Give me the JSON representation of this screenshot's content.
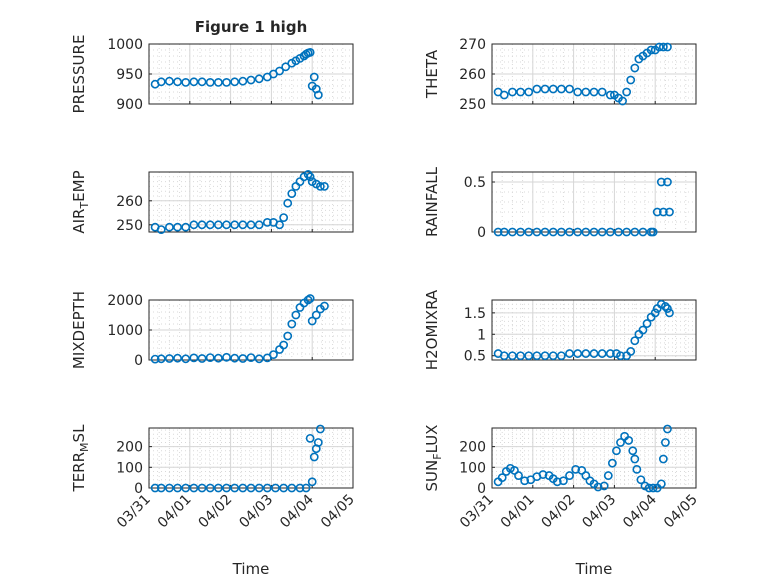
{
  "figure": {
    "title": "Figure 1 high",
    "xlabel": "Time",
    "xticks": [
      "03/31",
      "04/01",
      "04/02",
      "04/03",
      "04/04",
      "04/05"
    ]
  },
  "chart_data": [
    {
      "type": "scatter",
      "position": "row1-left",
      "ylabel": "PRESSURE",
      "xlim": [
        "03/31",
        "04/05"
      ],
      "ylim": [
        900,
        1000
      ],
      "yticks": [
        900,
        950,
        1000
      ],
      "grid": true,
      "marker_color": "#0072bd",
      "series": [
        {
          "x": [
            0.15,
            0.3,
            0.5,
            0.7,
            0.9,
            1.1,
            1.3,
            1.5,
            1.7,
            1.9,
            2.1,
            2.3,
            2.5,
            2.7,
            2.9,
            3.05,
            3.2,
            3.35,
            3.5,
            3.6,
            3.7,
            3.8,
            3.85,
            3.9,
            3.95,
            4.0,
            4.05,
            4.1,
            4.15
          ],
          "y": [
            933,
            937,
            938,
            937,
            936,
            937,
            937,
            936,
            936,
            936,
            937,
            938,
            940,
            942,
            945,
            950,
            955,
            962,
            968,
            972,
            976,
            980,
            983,
            985,
            986,
            930,
            945,
            925,
            915
          ]
        }
      ]
    },
    {
      "type": "scatter",
      "position": "row1-right",
      "ylabel": "THETA",
      "xlim": [
        "03/31",
        "04/05"
      ],
      "ylim": [
        250,
        270
      ],
      "yticks": [
        250,
        260,
        270
      ],
      "grid": true,
      "marker_color": "#0072bd",
      "series": [
        {
          "x": [
            0.15,
            0.3,
            0.5,
            0.7,
            0.9,
            1.1,
            1.3,
            1.5,
            1.7,
            1.9,
            2.1,
            2.3,
            2.5,
            2.7,
            2.9,
            3.0,
            3.1,
            3.2,
            3.3,
            3.4,
            3.5,
            3.6,
            3.7,
            3.8,
            3.9,
            4.0,
            4.1,
            4.2,
            4.3
          ],
          "y": [
            254,
            253,
            254,
            254,
            254,
            255,
            255,
            255,
            255,
            255,
            254,
            254,
            254,
            254,
            253,
            253,
            252,
            251,
            254,
            258,
            262,
            265,
            266,
            267,
            268,
            268,
            269,
            269,
            269
          ]
        }
      ]
    },
    {
      "type": "scatter",
      "position": "row2-left",
      "ylabel": "AIR_TEMP",
      "xlim": [
        "03/31",
        "04/05"
      ],
      "ylim": [
        247,
        272
      ],
      "yticks": [
        250,
        260
      ],
      "grid": true,
      "marker_color": "#0072bd",
      "series": [
        {
          "x": [
            0.15,
            0.3,
            0.5,
            0.7,
            0.9,
            1.1,
            1.3,
            1.5,
            1.7,
            1.9,
            2.1,
            2.3,
            2.5,
            2.7,
            2.9,
            3.05,
            3.2,
            3.3,
            3.4,
            3.5,
            3.6,
            3.7,
            3.8,
            3.9,
            3.95,
            4.0,
            4.1,
            4.2,
            4.3
          ],
          "y": [
            249,
            248,
            249,
            249,
            249,
            250,
            250,
            250,
            250,
            250,
            250,
            250,
            250,
            250,
            251,
            251,
            250,
            253,
            259,
            263,
            266,
            268,
            270,
            271,
            270,
            268,
            267,
            266,
            266
          ]
        }
      ]
    },
    {
      "type": "scatter",
      "position": "row2-right",
      "ylabel": "RAINFALL",
      "xlim": [
        "03/31",
        "04/05"
      ],
      "ylim": [
        0,
        0.6
      ],
      "yticks": [
        0,
        0.5
      ],
      "grid": true,
      "marker_color": "#0072bd",
      "series": [
        {
          "x": [
            0.15,
            0.3,
            0.5,
            0.7,
            0.9,
            1.1,
            1.3,
            1.5,
            1.7,
            1.9,
            2.1,
            2.3,
            2.5,
            2.7,
            2.9,
            3.1,
            3.3,
            3.5,
            3.7,
            3.9,
            3.95,
            4.05,
            4.15,
            4.2,
            4.3,
            4.35
          ],
          "y": [
            0,
            0,
            0,
            0,
            0,
            0,
            0,
            0,
            0,
            0,
            0,
            0,
            0,
            0,
            0,
            0,
            0,
            0,
            0,
            0,
            0,
            0.2,
            0.5,
            0.2,
            0.5,
            0.2
          ]
        }
      ]
    },
    {
      "type": "scatter",
      "position": "row3-left",
      "ylabel": "MIXDEPTH",
      "xlim": [
        "03/31",
        "04/05"
      ],
      "ylim": [
        0,
        2000
      ],
      "yticks": [
        0,
        1000,
        2000
      ],
      "grid": true,
      "marker_color": "#0072bd",
      "series": [
        {
          "x": [
            0.15,
            0.3,
            0.5,
            0.7,
            0.9,
            1.1,
            1.3,
            1.5,
            1.7,
            1.9,
            2.1,
            2.3,
            2.5,
            2.7,
            2.9,
            3.05,
            3.2,
            3.3,
            3.4,
            3.5,
            3.6,
            3.7,
            3.8,
            3.9,
            3.95,
            4.0,
            4.1,
            4.2,
            4.3
          ],
          "y": [
            30,
            40,
            50,
            60,
            40,
            70,
            50,
            80,
            60,
            90,
            60,
            50,
            80,
            40,
            70,
            180,
            350,
            500,
            800,
            1200,
            1500,
            1750,
            1900,
            2000,
            2050,
            1300,
            1500,
            1700,
            1800
          ]
        }
      ]
    },
    {
      "type": "scatter",
      "position": "row3-right",
      "ylabel": "H2OMIXRA",
      "xlim": [
        "03/31",
        "04/05"
      ],
      "ylim": [
        0.4,
        1.8
      ],
      "yticks": [
        0.5,
        1,
        1.5
      ],
      "grid": true,
      "marker_color": "#0072bd",
      "series": [
        {
          "x": [
            0.15,
            0.3,
            0.5,
            0.7,
            0.9,
            1.1,
            1.3,
            1.5,
            1.7,
            1.9,
            2.1,
            2.3,
            2.5,
            2.7,
            2.9,
            3.05,
            3.15,
            3.3,
            3.4,
            3.5,
            3.6,
            3.7,
            3.8,
            3.9,
            4.0,
            4.05,
            4.15,
            4.25,
            4.3,
            4.35
          ],
          "y": [
            0.55,
            0.5,
            0.5,
            0.5,
            0.5,
            0.5,
            0.5,
            0.5,
            0.5,
            0.55,
            0.55,
            0.55,
            0.55,
            0.55,
            0.55,
            0.55,
            0.5,
            0.5,
            0.6,
            0.85,
            1.0,
            1.1,
            1.25,
            1.4,
            1.5,
            1.6,
            1.7,
            1.65,
            1.6,
            1.5
          ]
        }
      ]
    },
    {
      "type": "scatter",
      "position": "row4-left",
      "ylabel": "TERR_MSL",
      "xlim": [
        "03/31",
        "04/05"
      ],
      "ylim": [
        0,
        290
      ],
      "yticks": [
        0,
        100,
        200
      ],
      "grid": true,
      "marker_color": "#0072bd",
      "series": [
        {
          "x": [
            0.15,
            0.3,
            0.5,
            0.7,
            0.9,
            1.1,
            1.3,
            1.5,
            1.7,
            1.9,
            2.1,
            2.3,
            2.5,
            2.7,
            2.9,
            3.1,
            3.3,
            3.5,
            3.7,
            3.85,
            3.95,
            4.0,
            4.05,
            4.1,
            4.15,
            4.2
          ],
          "y": [
            0,
            0,
            0,
            0,
            0,
            0,
            0,
            0,
            0,
            0,
            0,
            0,
            0,
            0,
            0,
            0,
            0,
            0,
            0,
            0,
            240,
            30,
            150,
            190,
            220,
            285
          ]
        }
      ]
    },
    {
      "type": "scatter",
      "position": "row4-right",
      "ylabel": "SUN_FLUX",
      "xlim": [
        "03/31",
        "04/05"
      ],
      "ylim": [
        0,
        290
      ],
      "yticks": [
        0,
        100,
        200
      ],
      "grid": true,
      "marker_color": "#0072bd",
      "series": [
        {
          "x": [
            0.15,
            0.25,
            0.35,
            0.45,
            0.55,
            0.65,
            0.8,
            0.95,
            1.1,
            1.25,
            1.4,
            1.5,
            1.6,
            1.75,
            1.9,
            2.05,
            2.2,
            2.3,
            2.4,
            2.5,
            2.6,
            2.75,
            2.85,
            2.95,
            3.05,
            3.15,
            3.25,
            3.35,
            3.45,
            3.5,
            3.55,
            3.65,
            3.75,
            3.85,
            3.95,
            4.05,
            4.15,
            4.2,
            4.25,
            4.3
          ],
          "y": [
            30,
            50,
            80,
            95,
            85,
            60,
            35,
            40,
            55,
            65,
            60,
            45,
            30,
            35,
            60,
            90,
            85,
            60,
            35,
            20,
            5,
            10,
            60,
            120,
            180,
            220,
            250,
            230,
            180,
            140,
            90,
            40,
            10,
            0,
            0,
            0,
            20,
            140,
            220,
            285
          ]
        }
      ]
    }
  ]
}
